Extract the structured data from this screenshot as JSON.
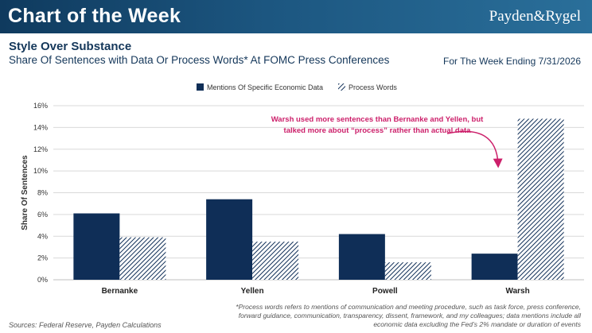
{
  "header": {
    "title": "Chart of the Week",
    "brand": "Payden&Rygel"
  },
  "subtitle": {
    "main": "Style Over Substance",
    "sub": "Share Of Sentences with Data Or Process Words* At FOMC Press Conferences",
    "week_ending": "For The Week Ending 7/31/2026"
  },
  "colors": {
    "banner": "#1c5680",
    "series_solid": "#0f2e57",
    "series_hatched": "#0f2e57",
    "annotation": "#cc1f6a"
  },
  "chart_data": {
    "type": "bar",
    "categories": [
      "Bernanke",
      "Yellen",
      "Powell",
      "Warsh"
    ],
    "series": [
      {
        "name": "Mentions Of Specific Economic Data",
        "values": [
          6.1,
          7.4,
          4.2,
          2.4
        ],
        "pattern": "solid"
      },
      {
        "name": "Process Words",
        "values": [
          3.9,
          3.5,
          1.6,
          14.8
        ],
        "pattern": "hatched"
      }
    ],
    "ylabel": "Share Of Sentences",
    "ylim": [
      0,
      16
    ],
    "yticks": [
      "0%",
      "2%",
      "4%",
      "6%",
      "8%",
      "10%",
      "12%",
      "14%",
      "16%"
    ],
    "grid": true,
    "legend": "top-center",
    "annotation": {
      "lines": [
        "Warsh used more sentences than Bernanke and Yellen, but",
        "talked more about “process” rather than actual data"
      ]
    }
  },
  "footnote": "*Process words refers to mentions of communication and meeting procedure, such as task force, press conference, forward guidance, communication, transparency, dissent, framework, and my colleagues; data mentions include all economic data excluding the Fed’s 2% mandate or duration of events",
  "source": "Sources: Federal Reserve, Payden Calculations"
}
